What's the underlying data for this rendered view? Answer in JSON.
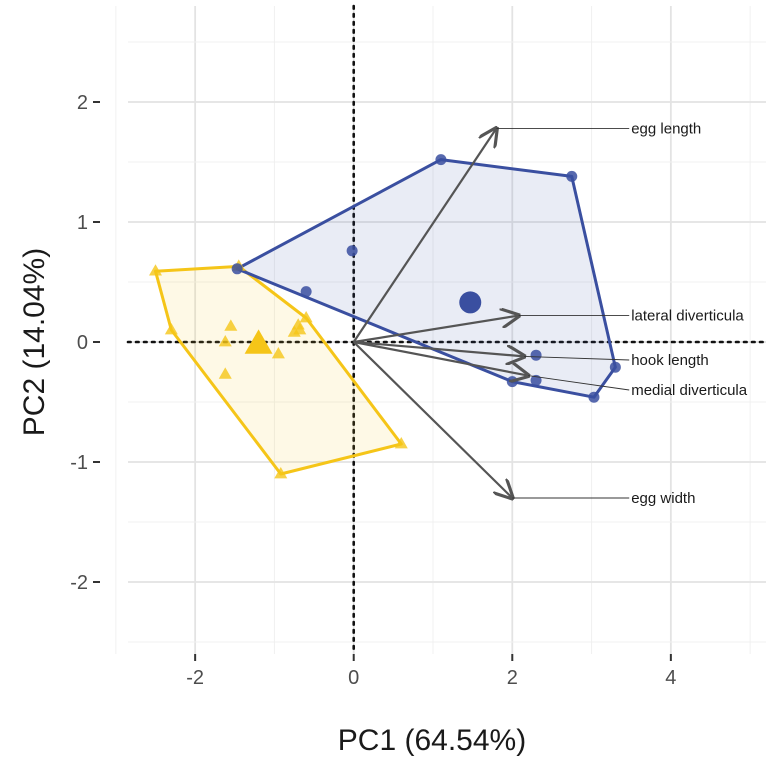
{
  "chart_data": {
    "type": "scatter",
    "title": "",
    "xlabel": "PC1 (64.54%)",
    "ylabel": "PC2 (14.04%)",
    "xlim": [
      -3.2,
      5.2
    ],
    "ylim": [
      -2.6,
      2.8
    ],
    "x_ticks": [
      -2,
      0,
      2,
      4
    ],
    "y_ticks": [
      -2,
      -1,
      0,
      1,
      2
    ],
    "x_tick_labels": [
      "-2",
      "0",
      "2",
      "4"
    ],
    "y_tick_labels": [
      "-2",
      "-1",
      "0",
      "1",
      "2"
    ],
    "grid": true,
    "legend": "none",
    "reference_lines": {
      "x": 0,
      "y": 0,
      "style": "dotted"
    },
    "groups": [
      {
        "color": "#f5c518",
        "marker": "triangle",
        "points": [
          [
            -2.5,
            0.59
          ],
          [
            -1.45,
            0.63
          ],
          [
            -2.3,
            0.1
          ],
          [
            -1.55,
            0.13
          ],
          [
            -1.62,
            0.0
          ],
          [
            -1.62,
            -0.27
          ],
          [
            -0.95,
            -0.1
          ],
          [
            -0.7,
            0.14
          ],
          [
            -0.6,
            0.2
          ],
          [
            -0.75,
            0.08
          ],
          [
            -0.68,
            0.1
          ],
          [
            -0.92,
            -1.1
          ],
          [
            0.6,
            -0.85
          ]
        ],
        "hull": [
          [
            -2.5,
            0.59
          ],
          [
            -1.45,
            0.63
          ],
          [
            -0.6,
            0.2
          ],
          [
            0.6,
            -0.85
          ],
          [
            -0.92,
            -1.1
          ],
          [
            -2.3,
            0.1
          ]
        ],
        "centroid": [
          -1.2,
          -0.02
        ]
      },
      {
        "color": "#3a4fa0",
        "marker": "circle",
        "points": [
          [
            -1.47,
            0.61
          ],
          [
            -0.6,
            0.42
          ],
          [
            -0.02,
            0.76
          ],
          [
            1.1,
            1.52
          ],
          [
            2.75,
            1.38
          ],
          [
            3.3,
            -0.21
          ],
          [
            3.03,
            -0.46
          ],
          [
            2.0,
            -0.33
          ],
          [
            2.3,
            -0.32
          ],
          [
            2.3,
            -0.11
          ]
        ],
        "hull": [
          [
            -1.47,
            0.61
          ],
          [
            1.1,
            1.52
          ],
          [
            2.75,
            1.38
          ],
          [
            3.3,
            -0.21
          ],
          [
            3.03,
            -0.46
          ],
          [
            2.0,
            -0.33
          ]
        ],
        "centroid": [
          1.47,
          0.33
        ]
      }
    ],
    "loadings": [
      {
        "label": "egg length",
        "x": 1.8,
        "y": 1.78,
        "label_x": 3.5,
        "label_y": 1.78
      },
      {
        "label": "lateral diverticula",
        "x": 2.08,
        "y": 0.22,
        "label_x": 3.5,
        "label_y": 0.22
      },
      {
        "label": "hook length",
        "x": 2.15,
        "y": -0.12,
        "label_x": 3.5,
        "label_y": -0.15
      },
      {
        "label": "medial diverticula",
        "x": 2.2,
        "y": -0.28,
        "label_x": 3.5,
        "label_y": -0.4
      },
      {
        "label": "egg width",
        "x": 2.0,
        "y": -1.3,
        "label_x": 3.5,
        "label_y": -1.3
      }
    ]
  }
}
